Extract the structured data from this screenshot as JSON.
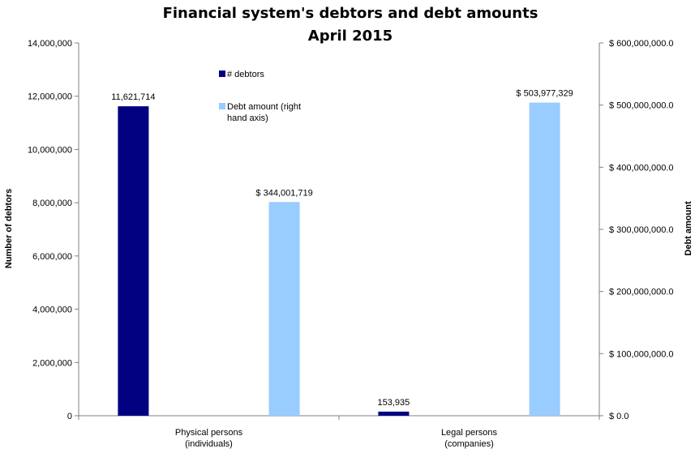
{
  "chart_data": {
    "type": "bar",
    "title": "Financial system's debtors and debt amounts",
    "subtitle": "April 2015",
    "categories": [
      "Physical persons\n(individuals)",
      "Legal persons\n(companies)"
    ],
    "series": [
      {
        "name": "# debtors",
        "axis": "left",
        "color": "#000080",
        "values": [
          11621714,
          153935
        ],
        "labels": [
          "11,621,714",
          "153,935"
        ]
      },
      {
        "name": "Debt amount (right hand axis)",
        "axis": "right",
        "color": "#99ccff",
        "values": [
          344001719,
          503977329
        ],
        "labels": [
          "$ 344,001,719",
          "$ 503,977,329"
        ]
      }
    ],
    "ylabel": "Number of debtors",
    "y2label": "Debt amount",
    "ylim": [
      0,
      14000000
    ],
    "y2lim": [
      0,
      600000000
    ],
    "yticks": [
      0,
      2000000,
      4000000,
      6000000,
      8000000,
      10000000,
      12000000,
      14000000
    ],
    "ytick_labels": [
      "0",
      "2,000,000",
      "4,000,000",
      "6,000,000",
      "8,000,000",
      "10,000,000",
      "12,000,000",
      "14,000,000"
    ],
    "y2ticks": [
      0,
      100000000,
      200000000,
      300000000,
      400000000,
      500000000,
      600000000
    ],
    "y2tick_labels": [
      "$ 0.0",
      "$ 100,000,000.0",
      "$ 200,000,000.0",
      "$ 300,000,000.0",
      "$ 400,000,000.0",
      "$ 500,000,000.0",
      "$ 600,000,000.0"
    ],
    "grid": false,
    "legend_position": "top-center"
  }
}
